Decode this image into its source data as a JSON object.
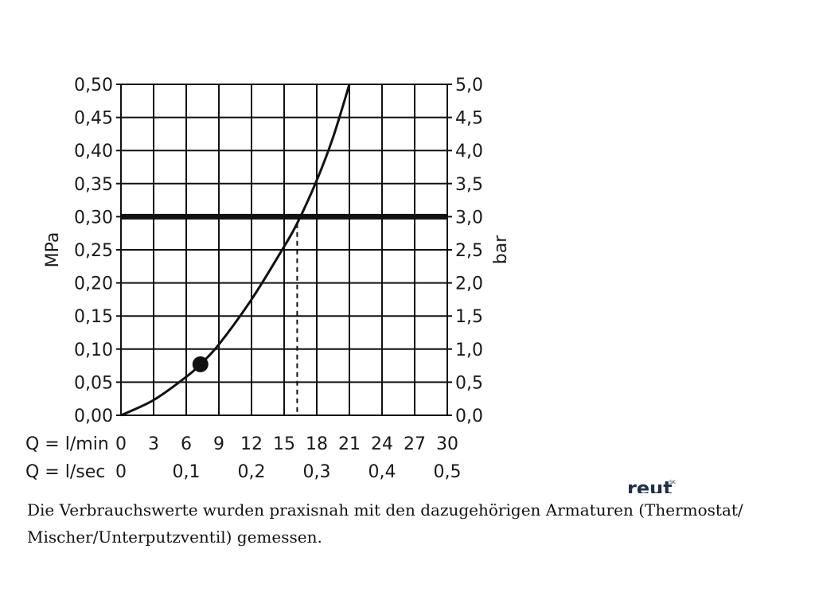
{
  "chart_data": {
    "type": "line",
    "left_axis_label": "MPa",
    "right_axis_label": "bar",
    "y_ticks_mpa": [
      "0,00",
      "0,05",
      "0,10",
      "0,15",
      "0,20",
      "0,25",
      "0,30",
      "0,35",
      "0,40",
      "0,45",
      "0,50"
    ],
    "y_ticks_bar": [
      "0,0",
      "0,5",
      "1,0",
      "1,5",
      "2,0",
      "2,5",
      "3,0",
      "3,5",
      "4,0",
      "4,5",
      "5,0"
    ],
    "ylim": [
      0,
      0.5
    ],
    "xlim": [
      0,
      30
    ],
    "x_row_lmin": {
      "label": "Q = l/min",
      "ticks": [
        "0",
        "3",
        "6",
        "9",
        "12",
        "15",
        "18",
        "21",
        "24",
        "27",
        "30"
      ]
    },
    "x_row_lsec": {
      "label": "Q = l/sec",
      "ticks": [
        "0",
        "0,1",
        "0,2",
        "0,3",
        "0,4",
        "0,5"
      ],
      "values": [
        0,
        6,
        12,
        18,
        24,
        30
      ]
    },
    "grid": true,
    "series": [
      {
        "x": [
          0,
          3,
          6,
          7.3,
          9,
          12,
          15,
          16.2,
          18,
          19.5,
          21
        ],
        "y": [
          0,
          0.023,
          0.058,
          0.077,
          0.107,
          0.175,
          0.255,
          0.29,
          0.355,
          0.42,
          0.5
        ]
      }
    ],
    "reference_line": {
      "y": 0.3
    },
    "marker_point": {
      "x": 7.3,
      "y": 0.077
    },
    "dashed_drop": {
      "x": 16.2,
      "y": 0.29
    }
  },
  "logo": {
    "text": "reut",
    "sup": "SK"
  },
  "note": "Die Verbrauchswerte wurden praxisnah mit den dazugehörigen Armaturen (Thermostat/ Mischer/Unterputzventil) gemessen.",
  "colors": {
    "ink": "#111111",
    "logo": "#1f2f4f"
  }
}
